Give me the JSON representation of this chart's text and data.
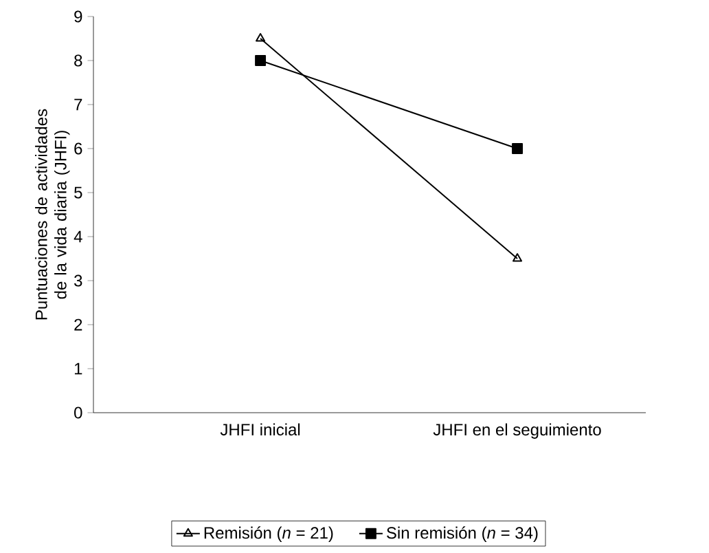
{
  "chart_data": {
    "type": "line",
    "ylabel": "Puntuaciones de actividades de la vida diaria (JHFI)",
    "categories": [
      "JHFI inicial",
      "JHFI en el seguimiento"
    ],
    "series": [
      {
        "name": "Remisión (*n* = 21)",
        "color": "#000000",
        "marker": "triangle",
        "values": [
          8.5,
          3.5
        ]
      },
      {
        "name": "Sin remisión (*n* = 34)",
        "color": "#000000",
        "marker": "square",
        "values": [
          8.0,
          6.0
        ]
      }
    ],
    "ylim": [
      0,
      9
    ],
    "yticks": [
      0,
      1,
      2,
      3,
      4,
      5,
      6,
      7,
      8,
      9
    ],
    "grid": false,
    "legend": "bottom",
    "line_style": "solid"
  }
}
